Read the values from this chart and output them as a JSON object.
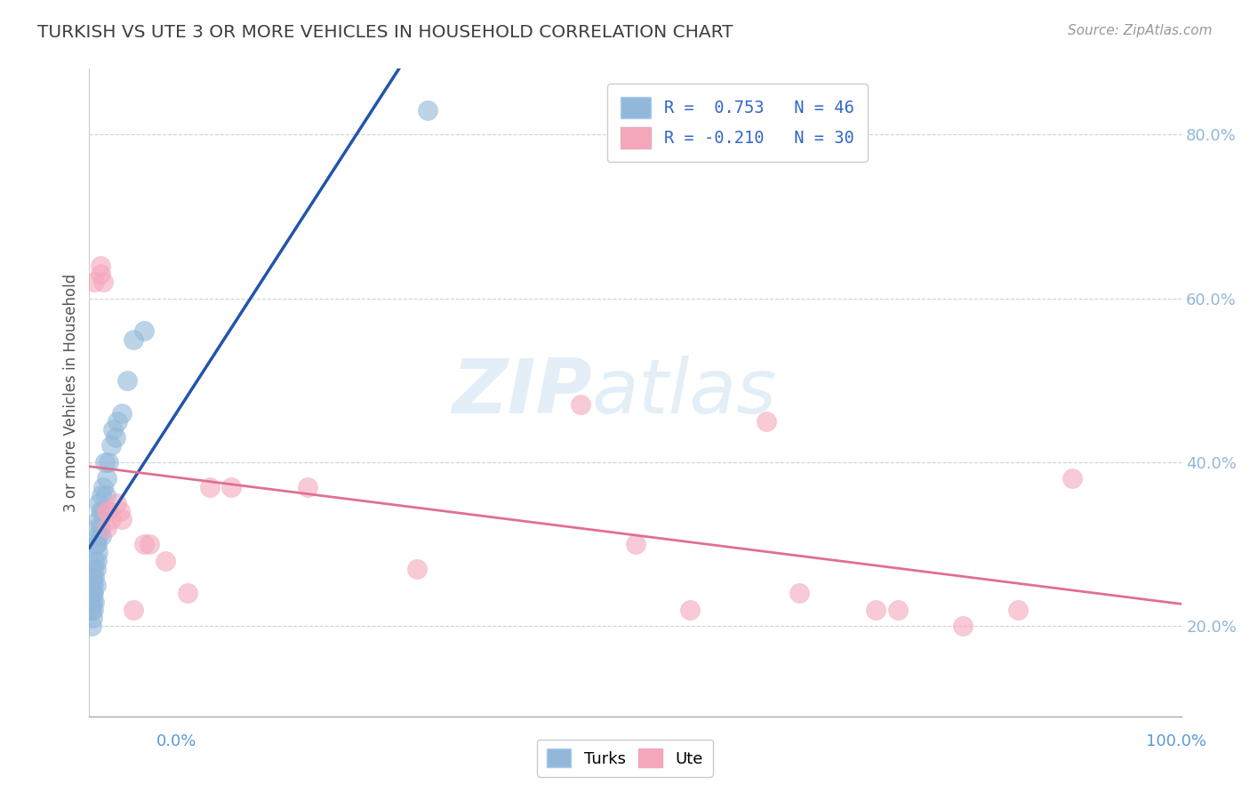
{
  "title": "TURKISH VS UTE 3 OR MORE VEHICLES IN HOUSEHOLD CORRELATION CHART",
  "source": "Source: ZipAtlas.com",
  "ylabel": "3 or more Vehicles in Household",
  "xlim": [
    0.0,
    1.0
  ],
  "ylim": [
    0.09,
    0.88
  ],
  "yticks": [
    0.2,
    0.4,
    0.6,
    0.8
  ],
  "ytick_labels": [
    "20.0%",
    "40.0%",
    "60.0%",
    "80.0%"
  ],
  "xtick_left_label": "0.0%",
  "xtick_right_label": "100.0%",
  "watermark_zip": "ZIP",
  "watermark_atlas": "atlas",
  "blue_color": "#92b8d9",
  "pink_color": "#f4a7bb",
  "blue_line_color": "#2255aa",
  "pink_line_color": "#e07090",
  "title_color": "#404040",
  "source_color": "#999999",
  "legend_text_color": "#3366cc",
  "R_blue": 0.753,
  "N_blue": 46,
  "R_pink": -0.21,
  "N_pink": 30,
  "blue_scatter_x": [
    0.001,
    0.001,
    0.002,
    0.002,
    0.002,
    0.002,
    0.003,
    0.003,
    0.003,
    0.003,
    0.004,
    0.004,
    0.004,
    0.004,
    0.005,
    0.005,
    0.005,
    0.006,
    0.006,
    0.006,
    0.007,
    0.007,
    0.007,
    0.008,
    0.008,
    0.009,
    0.009,
    0.01,
    0.01,
    0.011,
    0.011,
    0.012,
    0.013,
    0.014,
    0.015,
    0.016,
    0.018,
    0.02,
    0.022,
    0.024,
    0.026,
    0.03,
    0.035,
    0.04,
    0.05,
    0.31
  ],
  "blue_scatter_y": [
    0.22,
    0.24,
    0.2,
    0.23,
    0.22,
    0.25,
    0.21,
    0.23,
    0.24,
    0.26,
    0.22,
    0.25,
    0.24,
    0.27,
    0.23,
    0.26,
    0.28,
    0.25,
    0.27,
    0.3,
    0.28,
    0.3,
    0.32,
    0.29,
    0.31,
    0.33,
    0.35,
    0.32,
    0.34,
    0.31,
    0.36,
    0.34,
    0.37,
    0.4,
    0.36,
    0.38,
    0.4,
    0.42,
    0.44,
    0.43,
    0.45,
    0.46,
    0.5,
    0.55,
    0.56,
    0.83
  ],
  "pink_scatter_x": [
    0.005,
    0.01,
    0.013,
    0.016,
    0.016,
    0.02,
    0.025,
    0.03,
    0.055,
    0.13,
    0.2,
    0.45,
    0.5,
    0.55,
    0.62,
    0.72,
    0.74,
    0.8,
    0.85,
    0.9,
    0.01,
    0.018,
    0.028,
    0.04,
    0.05,
    0.07,
    0.09,
    0.11,
    0.3,
    0.65
  ],
  "pink_scatter_y": [
    0.62,
    0.64,
    0.62,
    0.32,
    0.34,
    0.33,
    0.35,
    0.33,
    0.3,
    0.37,
    0.37,
    0.47,
    0.3,
    0.22,
    0.45,
    0.22,
    0.22,
    0.2,
    0.22,
    0.38,
    0.63,
    0.34,
    0.34,
    0.22,
    0.3,
    0.28,
    0.24,
    0.37,
    0.27,
    0.24
  ]
}
